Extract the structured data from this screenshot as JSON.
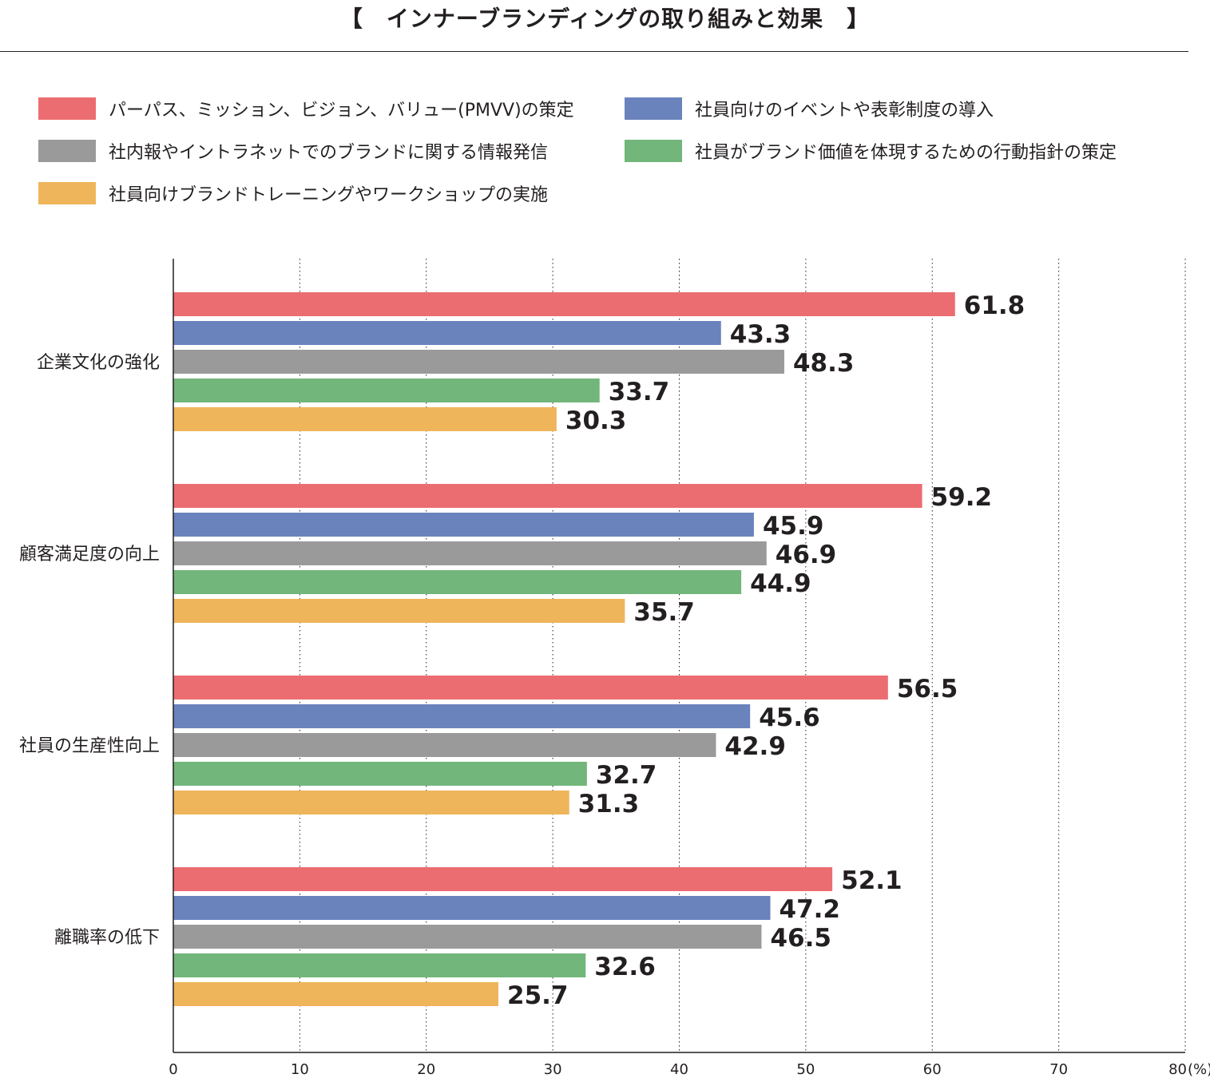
{
  "chart_data": {
    "type": "bar",
    "orientation": "horizontal",
    "title": "【　インナーブランディングの取り組みと効果　】",
    "xlabel": "",
    "ylabel": "",
    "unit": "(%)",
    "xlim": [
      0,
      80
    ],
    "xticks": [
      0,
      10,
      20,
      30,
      40,
      50,
      60,
      70,
      80
    ],
    "grid": "vertical dotted",
    "legend_position": "top",
    "categories": [
      "企業文化の強化",
      "顧客満足度の向上",
      "社員の生産性向上",
      "離職率の低下"
    ],
    "series": [
      {
        "name": "パーパス、ミッション、ビジョン、バリュー(PMVV)の策定",
        "color": "#ec6d71",
        "values": [
          61.8,
          59.2,
          56.5,
          52.1
        ]
      },
      {
        "name": "社員向けのイベントや表彰制度の導入",
        "color": "#6a83bd",
        "values": [
          43.3,
          45.9,
          45.6,
          47.2
        ]
      },
      {
        "name": "社内報やイントラネットでのブランドに関する情報発信",
        "color": "#9a9a9a",
        "values": [
          48.3,
          46.9,
          42.9,
          46.5
        ]
      },
      {
        "name": "社員がブランド価値を体現するための行動指針の策定",
        "color": "#72b67b",
        "values": [
          33.7,
          44.9,
          32.7,
          32.6
        ]
      },
      {
        "name": "社員向けブランドトレーニングやワークショップの実施",
        "color": "#eeb55b",
        "values": [
          30.3,
          35.7,
          31.3,
          25.7
        ]
      }
    ]
  }
}
